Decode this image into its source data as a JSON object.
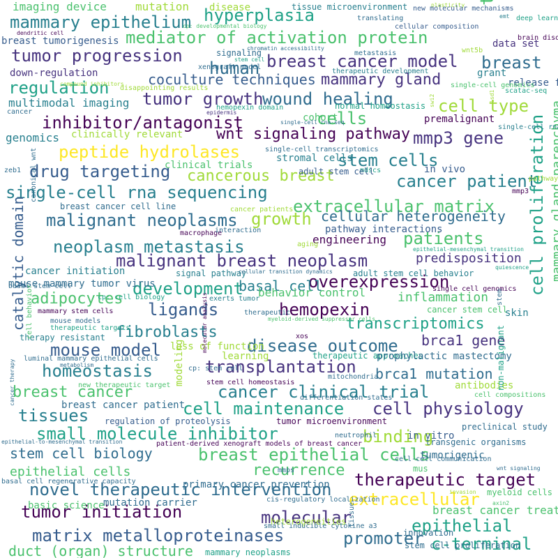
{
  "word_cloud": {
    "palette": {
      "dark_purple": "#440154",
      "indigo": "#46327e",
      "blue": "#365c8d",
      "steel": "#2f6c8e",
      "teal_blue": "#277f8e",
      "teal": "#1fa187",
      "green": "#4ac16d",
      "lime": "#a0da39",
      "yellow": "#fde725"
    },
    "words": [
      {
        "text": "mammary epithelium",
        "color": "#277f8e"
      },
      {
        "text": "hyperplasia",
        "color": "#1fa187"
      },
      {
        "text": "mediator of activation protein",
        "color": "#4ac16d"
      },
      {
        "text": "tumor",
        "color": "#4ac16d"
      },
      {
        "text": "tumor progression",
        "color": "#46327e"
      },
      {
        "text": "human",
        "color": "#2f6c8e"
      },
      {
        "text": "breast cancer model",
        "color": "#46327e"
      },
      {
        "text": "breast",
        "color": "#2f6c8e"
      },
      {
        "text": "regulation",
        "color": "#1fa187"
      },
      {
        "text": "coculture techniques",
        "color": "#365c8d"
      },
      {
        "text": "mammary gland",
        "color": "#46327e"
      },
      {
        "text": "tumor growth",
        "color": "#46327e"
      },
      {
        "text": "wound healing",
        "color": "#2f6c8e"
      },
      {
        "text": "cell type",
        "color": "#a0da39"
      },
      {
        "text": "multimodal imaging",
        "color": "#277f8e"
      },
      {
        "text": "inhibitor/antagonist",
        "color": "#440154"
      },
      {
        "text": "cells",
        "color": "#4ac16d"
      },
      {
        "text": "wnt signaling pathway",
        "color": "#440154"
      },
      {
        "text": "mmp3 gene",
        "color": "#46327e"
      },
      {
        "text": "genomics",
        "color": "#277f8e"
      },
      {
        "text": "peptide hydrolases",
        "color": "#fde725"
      },
      {
        "text": "stem cells",
        "color": "#277f8e"
      },
      {
        "text": "drug targeting",
        "color": "#365c8d"
      },
      {
        "text": "cancerous breast",
        "color": "#a0da39"
      },
      {
        "text": "cancer patient",
        "color": "#277f8e"
      },
      {
        "text": "single-cell rna sequencing",
        "color": "#277f8e"
      },
      {
        "text": "extracellular matrix",
        "color": "#4ac16d"
      },
      {
        "text": "malignant neoplasms",
        "color": "#2f6c8e"
      },
      {
        "text": "growth",
        "color": "#a0da39"
      },
      {
        "text": "cellular heterogeneity",
        "color": "#2f6c8e"
      },
      {
        "text": "neoplasm metastasis",
        "color": "#277f8e"
      },
      {
        "text": "patients",
        "color": "#4ac16d"
      },
      {
        "text": "malignant breast neoplasm",
        "color": "#46327e"
      },
      {
        "text": "engineering",
        "color": "#440154"
      },
      {
        "text": "predisposition",
        "color": "#46327e"
      },
      {
        "text": "development",
        "color": "#1fa187"
      },
      {
        "text": "overexpression",
        "color": "#440154"
      },
      {
        "text": "basal cell",
        "color": "#277f8e"
      },
      {
        "text": "adipocytes",
        "color": "#4ac16d"
      },
      {
        "text": "ligands",
        "color": "#365c8d"
      },
      {
        "text": "hemopexin",
        "color": "#440154"
      },
      {
        "text": "inflammation",
        "color": "#4ac16d"
      },
      {
        "text": "fibroblasts",
        "color": "#277f8e"
      },
      {
        "text": "transcriptomics",
        "color": "#1fa187"
      },
      {
        "text": "mouse model",
        "color": "#365c8d"
      },
      {
        "text": "disease outcome",
        "color": "#2f6c8e"
      },
      {
        "text": "brca1 gene",
        "color": "#46327e"
      },
      {
        "text": "homeostasis",
        "color": "#277f8e"
      },
      {
        "text": "transplantation",
        "color": "#46327e"
      },
      {
        "text": "brca1 mutation",
        "color": "#2f6c8e"
      },
      {
        "text": "breast cancer",
        "color": "#4ac16d"
      },
      {
        "text": "cancer clinical trial",
        "color": "#277f8e"
      },
      {
        "text": "cell maintenance",
        "color": "#1fa187"
      },
      {
        "text": "cell physiology",
        "color": "#46327e"
      },
      {
        "text": "tissues",
        "color": "#277f8e"
      },
      {
        "text": "small molecule inhibitor",
        "color": "#1fa187"
      },
      {
        "text": "binding",
        "color": "#a0da39"
      },
      {
        "text": "stem cell biology",
        "color": "#2f6c8e"
      },
      {
        "text": "breast epithelial cells",
        "color": "#4ac16d"
      },
      {
        "text": "recurrence",
        "color": "#4ac16d"
      },
      {
        "text": "epithelial cells",
        "color": "#4ac16d"
      },
      {
        "text": "therapeutic target",
        "color": "#440154"
      },
      {
        "text": "novel therapeutic intervention",
        "color": "#2f6c8e"
      },
      {
        "text": "tumor initiation",
        "color": "#440154"
      },
      {
        "text": "extracellular",
        "color": "#fde725"
      },
      {
        "text": "molecular",
        "color": "#46327e"
      },
      {
        "text": "epithelial",
        "color": "#1fa187"
      },
      {
        "text": "matrix metalloproteinases",
        "color": "#365c8d"
      },
      {
        "text": "promoter",
        "color": "#2f6c8e"
      },
      {
        "text": "c-terminal",
        "color": "#1fa187"
      },
      {
        "text": "duct (organ) structure",
        "color": "#4ac16d"
      },
      {
        "text": "cell proliferation",
        "color": "#1fa187"
      },
      {
        "text": "mammary gland parenchyma",
        "color": "#4ac16d"
      },
      {
        "text": "catalytic domain",
        "color": "#365c8d"
      },
      {
        "text": "imaging device",
        "color": "#4ac16d"
      },
      {
        "text": "mutation",
        "color": "#a0da39"
      },
      {
        "text": "disease",
        "color": "#a0da39"
      },
      {
        "text": "tissue microenvironment",
        "color": "#277f8e"
      },
      {
        "text": "plasticity",
        "color": "#a0da39"
      },
      {
        "text": "new molecular mechanisms",
        "color": "#365c8d"
      },
      {
        "text": "deep learning",
        "color": "#1fa187"
      },
      {
        "text": "emt",
        "color": "#277f8e"
      },
      {
        "text": "translating",
        "color": "#2f6c8e"
      },
      {
        "text": "cellular composition",
        "color": "#365c8d"
      },
      {
        "text": "cp: developmental biology",
        "color": "#4ac16d"
      },
      {
        "text": "brain disorder",
        "color": "#440154"
      },
      {
        "text": "breast tumorigenesis",
        "color": "#365c8d"
      },
      {
        "text": "data set",
        "color": "#46327e"
      },
      {
        "text": "dendritic cell",
        "color": "#440154"
      },
      {
        "text": "chromatin accessibility",
        "color": "#2f6c8e"
      },
      {
        "text": "wnt5b",
        "color": "#a0da39"
      },
      {
        "text": "xenograft model",
        "color": "#2f6c8e"
      },
      {
        "text": "signaling",
        "color": "#2f6c8e"
      },
      {
        "text": "metastasis",
        "color": "#2f6c8e"
      },
      {
        "text": "down-regulation",
        "color": "#46327e"
      },
      {
        "text": "stem cell",
        "color": "#1fa187"
      },
      {
        "text": "therapeutic development",
        "color": "#277f8e"
      },
      {
        "text": "grant",
        "color": "#277f8e"
      },
      {
        "text": "release factor",
        "color": "#365c8d"
      },
      {
        "text": "disappointing results",
        "color": "#a0da39"
      },
      {
        "text": "single-cell genomics",
        "color": "#4ac16d"
      },
      {
        "text": "scatac-seq",
        "color": "#1fa187"
      },
      {
        "text": "compound inhibitors",
        "color": "#a0da39"
      },
      {
        "text": "cancer",
        "color": "#2f6c8e"
      },
      {
        "text": "hemopexin domain",
        "color": "#1fa187"
      },
      {
        "text": "normal homeostasis",
        "color": "#1fa187"
      },
      {
        "text": "epidermis",
        "color": "#46327e"
      },
      {
        "text": "cohort",
        "color": "#4ac16d"
      },
      {
        "text": "premalignant",
        "color": "#440154"
      },
      {
        "text": "swi2",
        "color": "#a0da39"
      },
      {
        "text": "lsd1",
        "color": "#a0da39"
      },
      {
        "text": "single-cell rna-seq",
        "color": "#2f6c8e"
      },
      {
        "text": "single-cell rna",
        "color": "#277f8e"
      },
      {
        "text": "clinically relevant",
        "color": "#a0da39"
      },
      {
        "text": "single-cell transcriptomics",
        "color": "#2f6c8e"
      },
      {
        "text": "stromal cells",
        "color": "#277f8e"
      },
      {
        "text": "clinical trials",
        "color": "#4ac16d"
      },
      {
        "text": "in vivo",
        "color": "#365c8d"
      },
      {
        "text": "mdscs",
        "color": "#1fa187"
      },
      {
        "text": "pathway",
        "color": "#a0da39"
      },
      {
        "text": "zeb1",
        "color": "#2f6c8e"
      },
      {
        "text": "adult stem cell",
        "color": "#365c8d"
      },
      {
        "text": "mmp3",
        "color": "#440154"
      },
      {
        "text": "breast cancer cell line",
        "color": "#2f6c8e"
      },
      {
        "text": "canonical wnt",
        "color": "#2f6c8e"
      },
      {
        "text": "cancer patients",
        "color": "#a0da39"
      },
      {
        "text": "macrophage",
        "color": "#440154"
      },
      {
        "text": "interaction",
        "color": "#2f6c8e"
      },
      {
        "text": "pathway interactions",
        "color": "#365c8d"
      },
      {
        "text": "aging",
        "color": "#a0da39"
      },
      {
        "text": "epithelial-mesenchymal transition",
        "color": "#1fa187"
      },
      {
        "text": "cancer initiation",
        "color": "#277f8e"
      },
      {
        "text": "signal pathway",
        "color": "#277f8e"
      },
      {
        "text": "cellular transition dynamics",
        "color": "#2f6c8e"
      },
      {
        "text": "adult stem cell behavior",
        "color": "#277f8e"
      },
      {
        "text": "quiescence",
        "color": "#1fa187"
      },
      {
        "text": "mouse mammary tumor virus",
        "color": "#2f6c8e"
      },
      {
        "text": "basal stem cell",
        "color": "#2f6c8e"
      },
      {
        "text": "behavior control",
        "color": "#4ac16d"
      },
      {
        "text": "cp: cell biology",
        "color": "#1fa187"
      },
      {
        "text": "exerts tumor",
        "color": "#277f8e"
      },
      {
        "text": "single cell genomics",
        "color": "#440154"
      },
      {
        "text": "mammary stem cells",
        "color": "#440154"
      },
      {
        "text": "therapeutic",
        "color": "#2f6c8e"
      },
      {
        "text": "myeloid-derived suppressor cells",
        "color": "#4ac16d"
      },
      {
        "text": "cancer stem cell",
        "color": "#4ac16d"
      },
      {
        "text": "skin",
        "color": "#277f8e"
      },
      {
        "text": "mouse models",
        "color": "#2f6c8e"
      },
      {
        "text": "therapeutic targets",
        "color": "#1fa187"
      },
      {
        "text": "loss of function",
        "color": "#a0da39"
      },
      {
        "text": "therapy resistant",
        "color": "#277f8e"
      },
      {
        "text": "xos",
        "color": "#440154"
      },
      {
        "text": "stem",
        "color": "#2f6c8e"
      },
      {
        "text": "cell behavior",
        "color": "#4ac16d"
      },
      {
        "text": "learning",
        "color": "#a0da39"
      },
      {
        "text": "therapeutic approaches",
        "color": "#1fa187"
      },
      {
        "text": "prophylactic mastectomy",
        "color": "#2f6c8e"
      },
      {
        "text": "luminal mammary epithelial cells",
        "color": "#2f6c8e"
      },
      {
        "text": "metabolism",
        "color": "#2f6c8e"
      },
      {
        "text": "cp: stem cell",
        "color": "#2f6c8e"
      },
      {
        "text": "molecular analysis",
        "color": "#440154"
      },
      {
        "text": "modeling",
        "color": "#a0da39"
      },
      {
        "text": "new therapeutic target",
        "color": "#4ac16d"
      },
      {
        "text": "stem cell homeostasis",
        "color": "#440154"
      },
      {
        "text": "mitochondria",
        "color": "#2f6c8e"
      },
      {
        "text": "antibodies",
        "color": "#a0da39"
      },
      {
        "text": "differentiation states",
        "color": "#2f6c8e"
      },
      {
        "text": "cell compositions",
        "color": "#4ac16d"
      },
      {
        "text": "breast cancer patient",
        "color": "#2f6c8e"
      },
      {
        "text": "cancer therapy",
        "color": "#2f6c8e"
      },
      {
        "text": "regulation of proteolysis",
        "color": "#365c8d"
      },
      {
        "text": "tumor microenvironment",
        "color": "#440154"
      },
      {
        "text": "preclinical study",
        "color": "#2f6c8e"
      },
      {
        "text": "non-malignant",
        "color": "#1fa187"
      },
      {
        "text": "neutrophil",
        "color": "#2f6c8e"
      },
      {
        "text": "epithelial-to-mesenchymal transition",
        "color": "#2f6c8e"
      },
      {
        "text": "patient-derived xenograft models of breast cancer",
        "color": "#440154"
      },
      {
        "text": "transgenic organisms",
        "color": "#2f6c8e"
      },
      {
        "text": "tumorigenic",
        "color": "#2f6c8e"
      },
      {
        "text": "mmps",
        "color": "#2f6c8e"
      },
      {
        "text": "mus",
        "color": "#4ac16d"
      },
      {
        "text": "tissue",
        "color": "#2f6c8e"
      },
      {
        "text": "cell-cell communication",
        "color": "#2f6c8e"
      },
      {
        "text": "wnt signaling",
        "color": "#2f6c8e"
      },
      {
        "text": "basal cell regenerative capacity",
        "color": "#2f6c8e"
      },
      {
        "text": "primary cancer prevention",
        "color": "#2f6c8e"
      },
      {
        "text": "myeloid cells",
        "color": "#4ac16d"
      },
      {
        "text": "axin2",
        "color": "#4ac16d"
      },
      {
        "text": "cis-regulatory localization",
        "color": "#2f6c8e"
      },
      {
        "text": "mutation carrier",
        "color": "#2f6c8e"
      },
      {
        "text": "breast cancer treatment",
        "color": "#4ac16d"
      },
      {
        "text": "basic science",
        "color": "#4ac16d"
      },
      {
        "text": "heterogeneities",
        "color": "#a0da39"
      },
      {
        "text": "small inducible cytokine a3",
        "color": "#2f6c8e"
      },
      {
        "text": "innovation",
        "color": "#2f6c8e"
      },
      {
        "text": "stem cell proliferation",
        "color": "#2f6c8e"
      },
      {
        "text": "mammary neoplasms",
        "color": "#1fa187"
      },
      {
        "text": "invasion",
        "color": "#a0da39"
      },
      {
        "text": "in vitro",
        "color": "#365c8d"
      }
    ]
  }
}
